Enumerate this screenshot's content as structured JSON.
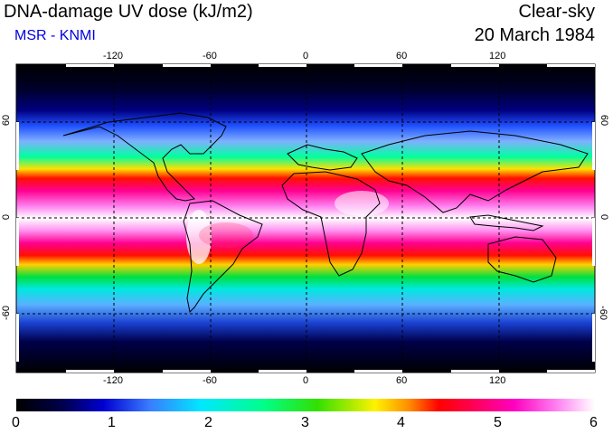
{
  "header": {
    "title": "DNA-damage UV dose (kJ/m2)",
    "credit": "MSR - KNMI",
    "mode": "Clear-sky",
    "date": "20 March 1984"
  },
  "map": {
    "lon_ticks": [
      "-120",
      "-60",
      "0",
      "60",
      "120"
    ],
    "lat_ticks_left": [
      "60",
      "0",
      "-60"
    ],
    "lat_ticks_right": [
      "60",
      "0",
      "-60"
    ]
  },
  "colorbar": {
    "labels": [
      "0",
      "1",
      "2",
      "3",
      "4",
      "5",
      "6"
    ],
    "min": 0,
    "max": 6
  },
  "colors": {
    "credit": "#0000e0",
    "band_peak": "#ffffff",
    "band_high": "#ff00c0",
    "band_mid": "#ff0000"
  }
}
